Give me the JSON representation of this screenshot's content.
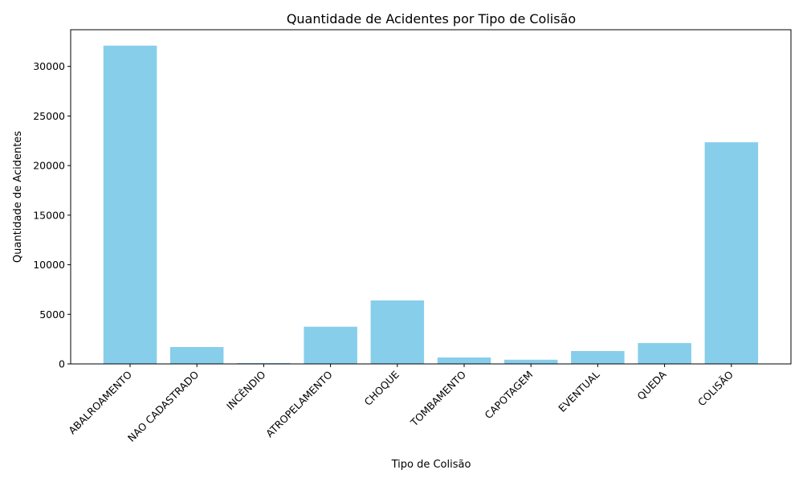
{
  "chart_data": {
    "type": "bar",
    "title": "Quantidade de Acidentes por Tipo de Colisão",
    "xlabel": "Tipo de Colisão",
    "ylabel": "Quantidade de Acidentes",
    "categories": [
      "ABALROAMENTO",
      "NAO CADASTRADO",
      "INCÊNDIO",
      "ATROPELAMENTO",
      "CHOQUE",
      "TOMBAMENTO",
      "CAPOTAGEM",
      "EVENTUAL",
      "QUEDA",
      "COLISÃO"
    ],
    "values": [
      32100,
      1700,
      90,
      3750,
      6400,
      650,
      420,
      1300,
      2100,
      22350
    ],
    "yticks": [
      0,
      5000,
      10000,
      15000,
      20000,
      25000,
      30000
    ],
    "ylim": [
      0,
      33700
    ],
    "grid": false,
    "bar_color": "#87ceeb"
  }
}
